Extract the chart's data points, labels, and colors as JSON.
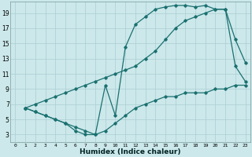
{
  "xlabel": "Humidex (Indice chaleur)",
  "bg_color": "#cce8ea",
  "grid_color": "#aacdd4",
  "line_color": "#1a7070",
  "xlim": [
    -0.5,
    23.5
  ],
  "ylim": [
    2,
    20.5
  ],
  "xticks": [
    0,
    1,
    2,
    3,
    4,
    5,
    6,
    7,
    8,
    9,
    10,
    11,
    12,
    13,
    14,
    15,
    16,
    17,
    18,
    19,
    20,
    21,
    22,
    23
  ],
  "yticks": [
    3,
    5,
    7,
    9,
    11,
    13,
    15,
    17,
    19
  ],
  "line1_x": [
    1,
    2,
    3,
    4,
    5,
    6,
    7,
    8,
    9,
    10,
    11,
    12,
    13,
    14,
    15,
    16,
    17,
    18,
    19,
    20,
    21,
    22,
    23
  ],
  "line1_y": [
    6.5,
    6.0,
    5.5,
    5.0,
    4.5,
    3.5,
    3.0,
    3.0,
    9.5,
    5.5,
    14.5,
    17.5,
    18.5,
    19.5,
    19.8,
    20.0,
    20.0,
    19.8,
    20.0,
    19.5,
    19.5,
    12.0,
    10.0
  ],
  "line2_x": [
    1,
    2,
    3,
    4,
    5,
    6,
    7,
    8,
    9,
    10,
    11,
    12,
    13,
    14,
    15,
    16,
    17,
    18,
    19,
    20,
    21,
    22,
    23
  ],
  "line2_y": [
    6.5,
    7.0,
    7.5,
    8.0,
    8.5,
    9.0,
    9.5,
    10.0,
    10.5,
    11.0,
    11.5,
    12.0,
    13.0,
    14.0,
    15.5,
    17.0,
    18.0,
    18.5,
    19.0,
    19.5,
    19.5,
    15.5,
    12.5
  ],
  "line3_x": [
    1,
    2,
    3,
    4,
    5,
    6,
    7,
    8,
    9,
    10,
    11,
    12,
    13,
    14,
    15,
    16,
    17,
    18,
    19,
    20,
    21,
    22,
    23
  ],
  "line3_y": [
    6.5,
    6.0,
    5.5,
    5.0,
    4.5,
    4.0,
    3.5,
    3.0,
    3.5,
    4.5,
    5.5,
    6.5,
    7.0,
    7.5,
    8.0,
    8.0,
    8.5,
    8.5,
    8.5,
    9.0,
    9.0,
    9.5,
    9.5
  ],
  "marker": "D",
  "markersize": 1.8,
  "linewidth": 0.9
}
